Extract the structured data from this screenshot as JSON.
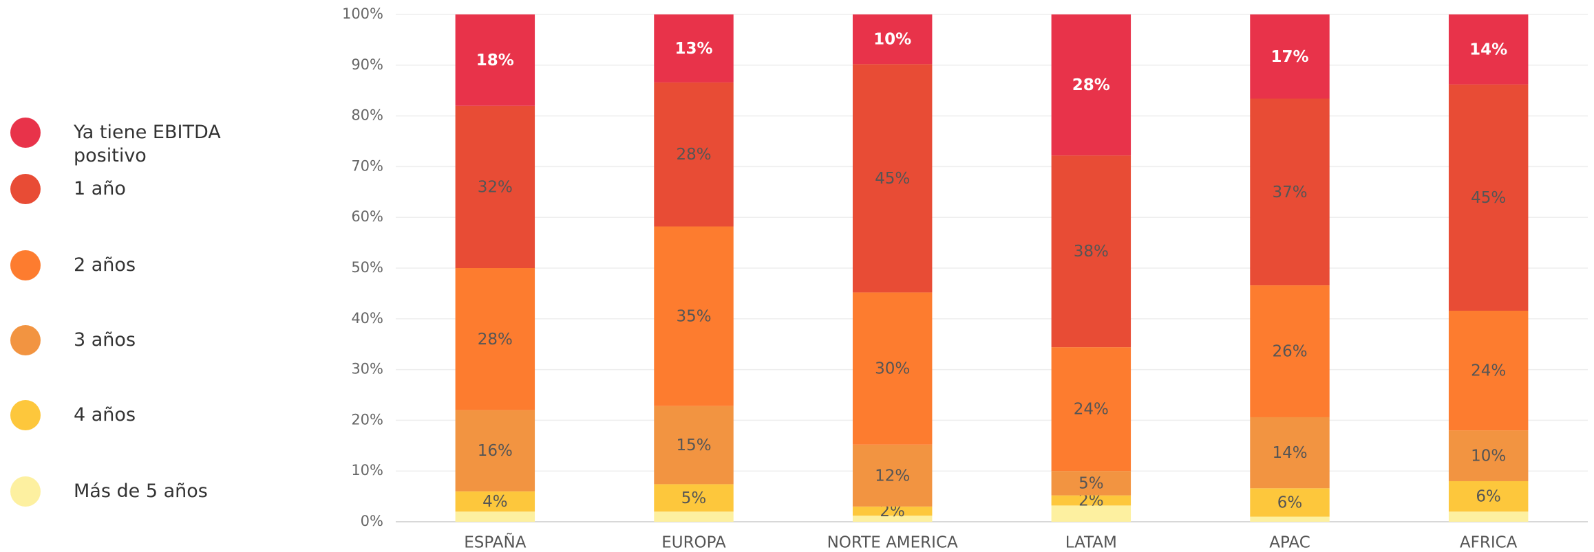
{
  "chart_data": {
    "type": "stacked_bar",
    "categories": [
      "ESPAÑA",
      "EUROPA",
      "NORTE AMERICA",
      "LATAM",
      "APAC",
      "AFRICA"
    ],
    "series": [
      {
        "name": "Ya tiene EBITDA positivo",
        "color": "#e8334a",
        "values": [
          18,
          13.4,
          9.8,
          27.8,
          16.6,
          13.8
        ],
        "value_labels": [
          "18%",
          "13%",
          "10%",
          "28%",
          "17%",
          "14%"
        ]
      },
      {
        "name": "1 año",
        "color": "#e84c35",
        "values": [
          32,
          28.4,
          45,
          37.8,
          36.8,
          44.6
        ],
        "value_labels": [
          "32%",
          "28%",
          "45%",
          "38%",
          "37%",
          "45%"
        ]
      },
      {
        "name": "2 años",
        "color": "#fd7c2f",
        "values": [
          28,
          35.4,
          30,
          24.4,
          26,
          23.6
        ],
        "value_labels": [
          "28%",
          "35%",
          "30%",
          "24%",
          "26%",
          "24%"
        ]
      },
      {
        "name": "3 años",
        "color": "#f29441",
        "values": [
          16,
          15.4,
          12.2,
          4.8,
          14,
          10
        ],
        "value_labels": [
          "16%",
          "15%",
          "12%",
          "5%",
          "14%",
          "10%"
        ]
      },
      {
        "name": "4 años",
        "color": "#fdc73c",
        "values": [
          4,
          5.4,
          1.8,
          2,
          5.6,
          6
        ],
        "value_labels": [
          "4%",
          "5%",
          "2%",
          "2%",
          "6%",
          "6%"
        ]
      },
      {
        "name": "Más de 5 años",
        "color": "#fdf0a0",
        "values": [
          2,
          2,
          1.2,
          3.2,
          1,
          2
        ],
        "value_labels": [
          null,
          null,
          null,
          null,
          null,
          null
        ]
      }
    ],
    "ylim": [
      0,
      100
    ],
    "yticks": [
      {
        "value": 0,
        "label": "0%"
      },
      {
        "value": 10,
        "label": "10%"
      },
      {
        "value": 20,
        "label": "20%"
      },
      {
        "value": 30,
        "label": "30%"
      },
      {
        "value": 40,
        "label": "40%"
      },
      {
        "value": 50,
        "label": "50%"
      },
      {
        "value": 60,
        "label": "60%"
      },
      {
        "value": 70,
        "label": "70%"
      },
      {
        "value": 80,
        "label": "80%"
      },
      {
        "value": 90,
        "label": "90%"
      },
      {
        "value": 100,
        "label": "100%"
      }
    ],
    "grid": true,
    "legend": "left"
  }
}
